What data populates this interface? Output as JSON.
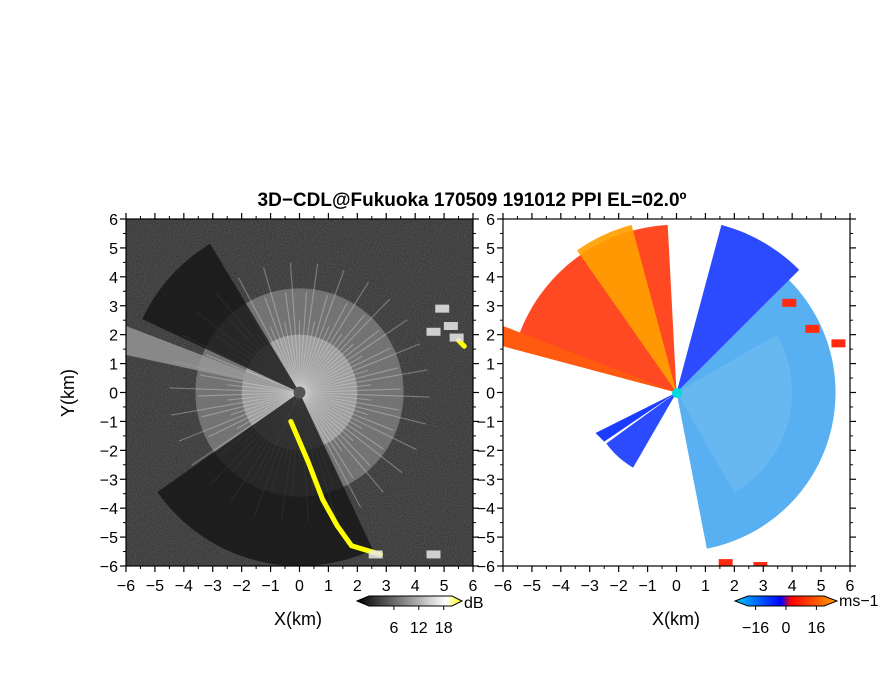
{
  "title": "3D−CDL@Fukuoka 170509 191012 PPI EL=02.0º",
  "chart_data": [
    {
      "type": "heatmap",
      "name": "reflectivity-panel",
      "xlabel": "X(km)",
      "ylabel": "Y(km)",
      "xlim": [
        -6,
        6
      ],
      "ylim": [
        -6,
        6
      ],
      "xticks": [
        "−6",
        "−5",
        "−4",
        "−3",
        "−2",
        "−1",
        "0",
        "1",
        "2",
        "3",
        "4",
        "5",
        "6"
      ],
      "yticks": [
        "6",
        "5",
        "4",
        "3",
        "2",
        "1",
        "0",
        "−1",
        "−2",
        "−3",
        "−4",
        "−5",
        "−6"
      ],
      "colorbar": {
        "unit": "dB",
        "ticks": [
          "6",
          "12",
          "18"
        ],
        "range": [
          0,
          20
        ],
        "colors": [
          "#000000",
          "#ffffff",
          "#ffff00"
        ]
      },
      "features": [
        {
          "label": "dark-sector",
          "az_from_deg": 295,
          "az_to_deg": 330,
          "max_range_km": 6
        },
        {
          "label": "dark-sector",
          "az_from_deg": 155,
          "az_to_deg": 205,
          "max_range_km": 6
        },
        {
          "label": "dark-sector",
          "az_from_deg": 205,
          "az_to_deg": 235,
          "max_range_km": 6
        },
        {
          "label": "yellow-echo",
          "points": [
            [
              -0.3,
              -1.0
            ],
            [
              0.3,
              -2.4
            ],
            [
              0.8,
              -3.7
            ],
            [
              1.3,
              -4.6
            ],
            [
              1.8,
              -5.3
            ],
            [
              2.8,
              -5.6
            ]
          ]
        },
        {
          "label": "yellow-echo",
          "points": [
            [
              5.5,
              1.8
            ],
            [
              5.7,
              1.6
            ]
          ]
        }
      ]
    },
    {
      "type": "heatmap",
      "name": "doppler-velocity-panel",
      "xlabel": "X(km)",
      "ylabel": "",
      "xlim": [
        -6,
        6
      ],
      "ylim": [
        -6,
        6
      ],
      "xticks": [
        "−6",
        "−5",
        "−4",
        "−3",
        "−2",
        "−1",
        "0",
        "1",
        "2",
        "3",
        "4",
        "5",
        "6"
      ],
      "yticks": [
        "6",
        "5",
        "4",
        "3",
        "2",
        "1",
        "0",
        "−1",
        "−2",
        "−3",
        "−4",
        "−5",
        "−6"
      ],
      "colorbar": {
        "unit": "ms−1",
        "ticks": [
          "−16",
          "0",
          "16"
        ],
        "range": [
          -20,
          20
        ],
        "colors": [
          "#00c8ff",
          "#0000ff",
          "#ff0000",
          "#ffa000"
        ]
      },
      "regions": [
        {
          "label": "receding-orange-red",
          "az_from_deg": 285,
          "az_to_deg": 358,
          "max_range_km": 5.8,
          "value_ms": 10
        },
        {
          "label": "receding-far-orange",
          "az_from_deg": 325,
          "az_to_deg": 345,
          "max_range_km": 6.0,
          "value_ms": 16
        },
        {
          "label": "approaching-blue",
          "az_from_deg": 45,
          "az_to_deg": 170,
          "max_range_km": 5.5,
          "value_ms": -8
        },
        {
          "label": "approaching-blue-ne",
          "az_from_deg": 15,
          "az_to_deg": 45,
          "max_range_km": 6.0,
          "value_ms": -10
        },
        {
          "label": "folded-blue-sw",
          "az_from_deg": 210,
          "az_to_deg": 235,
          "max_range_km": 3.0,
          "value_ms": -10
        }
      ]
    }
  ]
}
